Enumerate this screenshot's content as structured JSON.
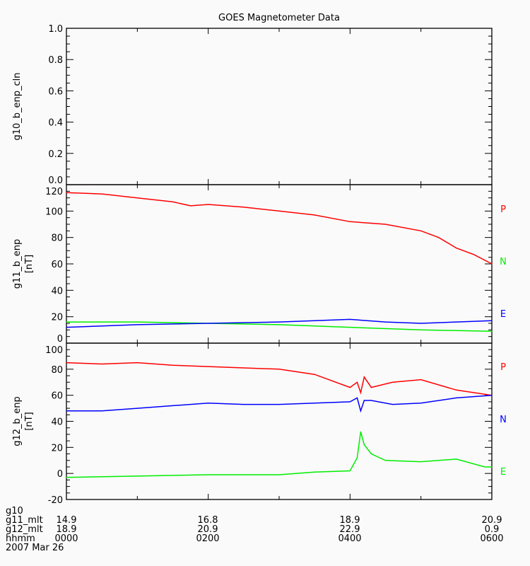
{
  "chart_data": {
    "type": "line",
    "title": "GOES Magnetometer Data",
    "x_unit": "hours since 0000 UT",
    "xlim": [
      0,
      6
    ],
    "panels": [
      {
        "ylabel": "g10_b_enp_cln",
        "unit": "",
        "ylim": [
          0,
          1
        ],
        "yticks": [
          "0.0",
          "0.2",
          "0.4",
          "0.6",
          "0.8",
          "1.0"
        ],
        "ytick_values": [
          0,
          0.2,
          0.4,
          0.6,
          0.8,
          1.0
        ],
        "series": []
      },
      {
        "ylabel": "g11_b_enp",
        "unit": "[nT]",
        "ylim": [
          0,
          120
        ],
        "yticks": [
          "0",
          "20",
          "40",
          "60",
          "80",
          "100",
          "120"
        ],
        "ytick_values": [
          0,
          20,
          40,
          60,
          80,
          100,
          120
        ],
        "series": [
          {
            "name": "P",
            "color": "#ff0000",
            "x": [
              0,
              0.5,
              1,
              1.5,
              1.75,
              2,
              2.5,
              3,
              3.5,
              4,
              4.5,
              5,
              5.25,
              5.5,
              5.75,
              6
            ],
            "y": [
              114,
              113,
              110,
              107,
              104,
              105,
              103,
              100,
              97,
              92,
              90,
              85,
              80,
              72,
              67,
              60
            ]
          },
          {
            "name": "N",
            "color": "#00ee00",
            "x": [
              0,
              1,
              2,
              3,
              4,
              5,
              6
            ],
            "y": [
              16,
              16,
              15,
              14,
              12,
              10,
              9
            ]
          },
          {
            "name": "E",
            "color": "#0000ff",
            "x": [
              0,
              0.5,
              1,
              2,
              3,
              4,
              4.5,
              5,
              5.5,
              6
            ],
            "y": [
              12,
              13,
              14,
              15,
              16,
              18,
              16,
              15,
              16,
              17
            ]
          }
        ]
      },
      {
        "ylabel": "g12_b_enp",
        "unit": "[nT]",
        "ylim": [
          -20,
          100
        ],
        "yticks": [
          "-20",
          "0",
          "20",
          "40",
          "60",
          "80",
          "100"
        ],
        "ytick_values": [
          -20,
          0,
          20,
          40,
          60,
          80,
          100
        ],
        "series": [
          {
            "name": "P",
            "color": "#ff0000",
            "x": [
              0,
              0.5,
              1,
              1.5,
              2,
              2.5,
              3,
              3.5,
              4,
              4.1,
              4.15,
              4.2,
              4.3,
              4.6,
              5,
              5.5,
              6
            ],
            "y": [
              85,
              84,
              85,
              83,
              82,
              81,
              80,
              76,
              66,
              70,
              62,
              74,
              66,
              70,
              72,
              64,
              60
            ]
          },
          {
            "name": "N",
            "color": "#0000ff",
            "x": [
              0,
              0.5,
              1,
              1.5,
              2,
              2.5,
              3,
              3.5,
              4,
              4.1,
              4.15,
              4.2,
              4.3,
              4.6,
              5,
              5.5,
              6
            ],
            "y": [
              48,
              48,
              50,
              52,
              54,
              53,
              53,
              54,
              55,
              58,
              48,
              56,
              56,
              53,
              54,
              58,
              60
            ]
          },
          {
            "name": "E",
            "color": "#00ee00",
            "x": [
              0,
              1,
              2,
              3,
              3.5,
              4,
              4.1,
              4.15,
              4.2,
              4.3,
              4.5,
              5,
              5.5,
              5.9,
              6
            ],
            "y": [
              -3,
              -2,
              -1,
              -1,
              1,
              2,
              12,
              32,
              22,
              15,
              10,
              9,
              11,
              5,
              5
            ]
          }
        ]
      }
    ],
    "xaxis_rows": [
      {
        "label": "g10",
        "values": [
          "",
          "",
          "",
          ""
        ]
      },
      {
        "label": "g11_mlt",
        "values": [
          "14.9",
          "16.8",
          "18.9",
          "20.9"
        ]
      },
      {
        "label": "g12_mlt",
        "values": [
          "18.9",
          "20.9",
          "22.9",
          "0.9"
        ]
      },
      {
        "label": "hhmm",
        "values": [
          "0000",
          "0200",
          "0400",
          "0600"
        ]
      }
    ],
    "date": "2007 Mar 26"
  }
}
